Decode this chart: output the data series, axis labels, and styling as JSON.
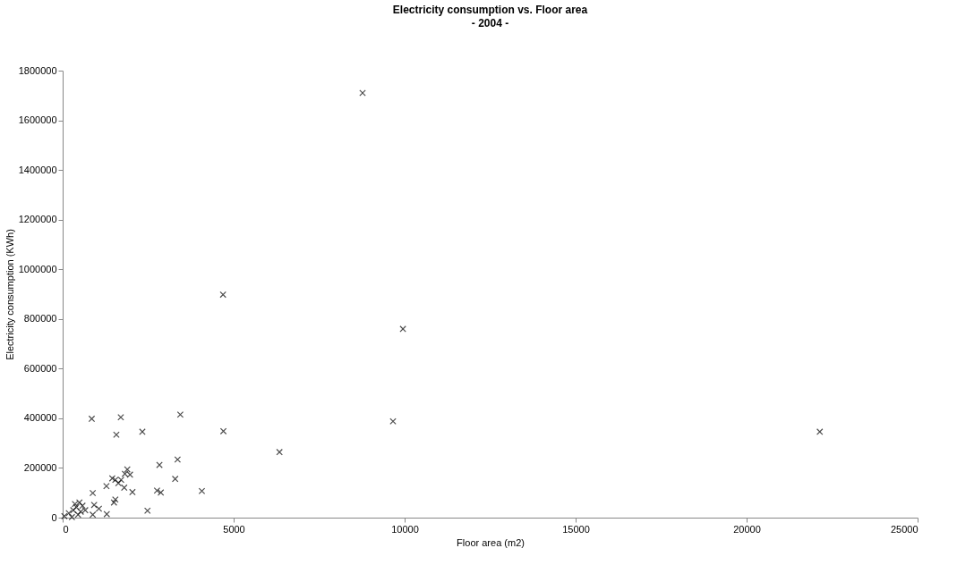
{
  "chart_data": {
    "type": "scatter",
    "title": "Electricity consumption vs. Floor area",
    "subtitle": "- 2004 -",
    "xlabel": "Floor area (m2)",
    "ylabel": "Electricity consumption (KWh)",
    "marker": "cross",
    "grid": false,
    "xlim": [
      0,
      25000
    ],
    "xticks": [
      0,
      5000,
      10000,
      15000,
      20000,
      25000
    ],
    "ylim": [
      0,
      1800000
    ],
    "yticks": [
      0,
      200000,
      400000,
      600000,
      800000,
      1000000,
      1200000,
      1400000,
      1600000,
      1800000
    ],
    "series": [
      {
        "color": "#000000",
        "x": [
          8770,
          4690,
          9950,
          9660,
          22140,
          6340,
          850,
          1700,
          1570,
          2330,
          3440,
          4700,
          2830,
          3360,
          3290,
          4070,
          2760,
          2870,
          2480,
          1890,
          1970,
          1820,
          1710,
          1540,
          1450,
          1630,
          1800,
          2040,
          1280,
          1540,
          1500,
          880,
          920,
          1060,
          880,
          1290,
          50,
          180,
          310,
          400,
          490,
          580,
          450,
          270,
          660,
          360,
          530
        ],
        "values": [
          1710000,
          898000,
          760000,
          388000,
          346000,
          264000,
          398000,
          404000,
          334000,
          346000,
          415000,
          348000,
          212000,
          234000,
          156000,
          107000,
          109000,
          101000,
          28000,
          194000,
          173000,
          176000,
          152000,
          152000,
          158000,
          139000,
          121000,
          103000,
          127000,
          73000,
          61000,
          99000,
          51000,
          36000,
          12000,
          14000,
          6000,
          18000,
          30000,
          42000,
          61000,
          48000,
          12000,
          2000,
          30000,
          55000,
          24000
        ]
      }
    ]
  }
}
